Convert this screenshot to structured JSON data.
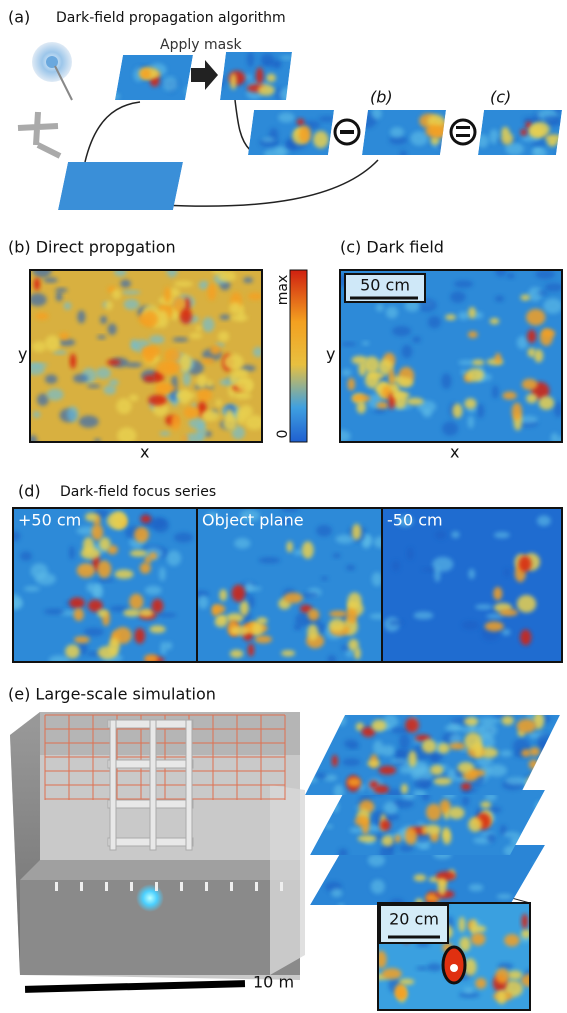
{
  "panel_a": {
    "label": "(a)",
    "title": "Dark-field propagation algorithm",
    "mask_label": "Apply mask",
    "result_b": "(b)",
    "result_c": "(c)"
  },
  "panel_b": {
    "title": "(b) Direct propgation",
    "y_label": "y",
    "x_label": "x",
    "colorbar_max": "max",
    "colorbar_min": "0"
  },
  "panel_c": {
    "title": "(c) Dark field",
    "scale": "50 cm",
    "y_label": "y",
    "x_label": "x"
  },
  "panel_d": {
    "label": "(d)",
    "title": "Dark-field focus series",
    "planes": [
      "+50 cm",
      "Object plane",
      "-50 cm"
    ]
  },
  "panel_e": {
    "title": "(e) Large-scale simulation",
    "scale": "10 m",
    "inset_scale": "20 cm"
  }
}
